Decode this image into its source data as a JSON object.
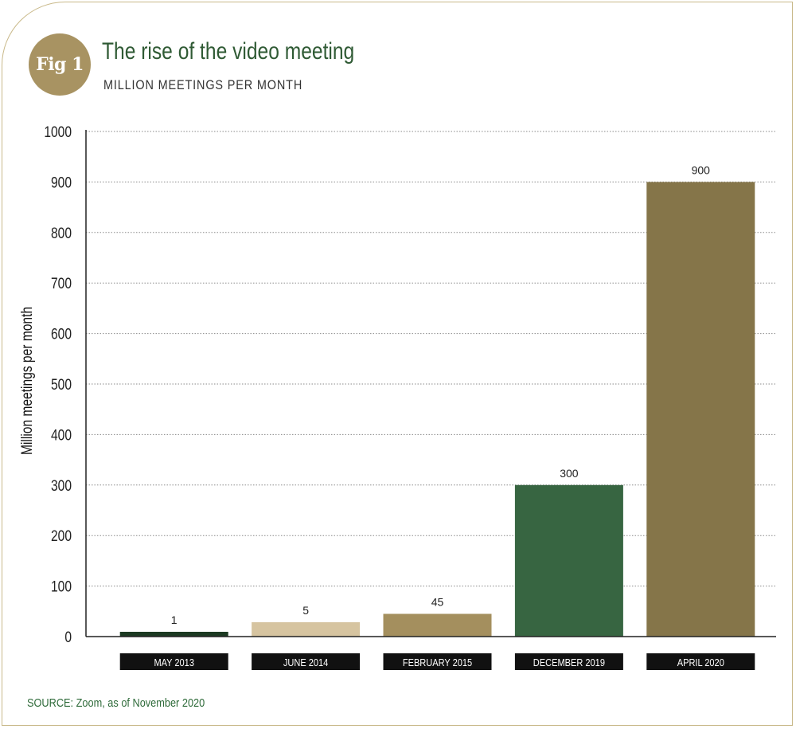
{
  "badge": "Fig 1",
  "title": "The rise of the video meeting",
  "subtitle": "MILLION MEETINGS PER MONTH",
  "source": "SOURCE: Zoom, as of November 2020",
  "chart_data": {
    "type": "bar",
    "categories": [
      "MAY 2013",
      "JUNE 2014",
      "FEBRUARY 2015",
      "DECEMBER 2019",
      "APRIL 2020"
    ],
    "values": [
      1,
      5,
      45,
      300,
      900
    ],
    "value_labels": [
      "1",
      "5",
      "45",
      "300",
      "900"
    ],
    "colors": [
      "#1c3a22",
      "#d6c4a0",
      "#a48f5e",
      "#376541",
      "#857549"
    ],
    "title": "The rise of the video meeting",
    "subtitle": "MILLION MEETINGS PER MONTH",
    "ylabel": "Million meetings per month",
    "xlabel": "",
    "ylim": [
      0,
      1000
    ],
    "yticks": [
      0,
      100,
      200,
      300,
      400,
      500,
      600,
      700,
      800,
      900,
      1000
    ],
    "grid": true,
    "legend": "none"
  }
}
